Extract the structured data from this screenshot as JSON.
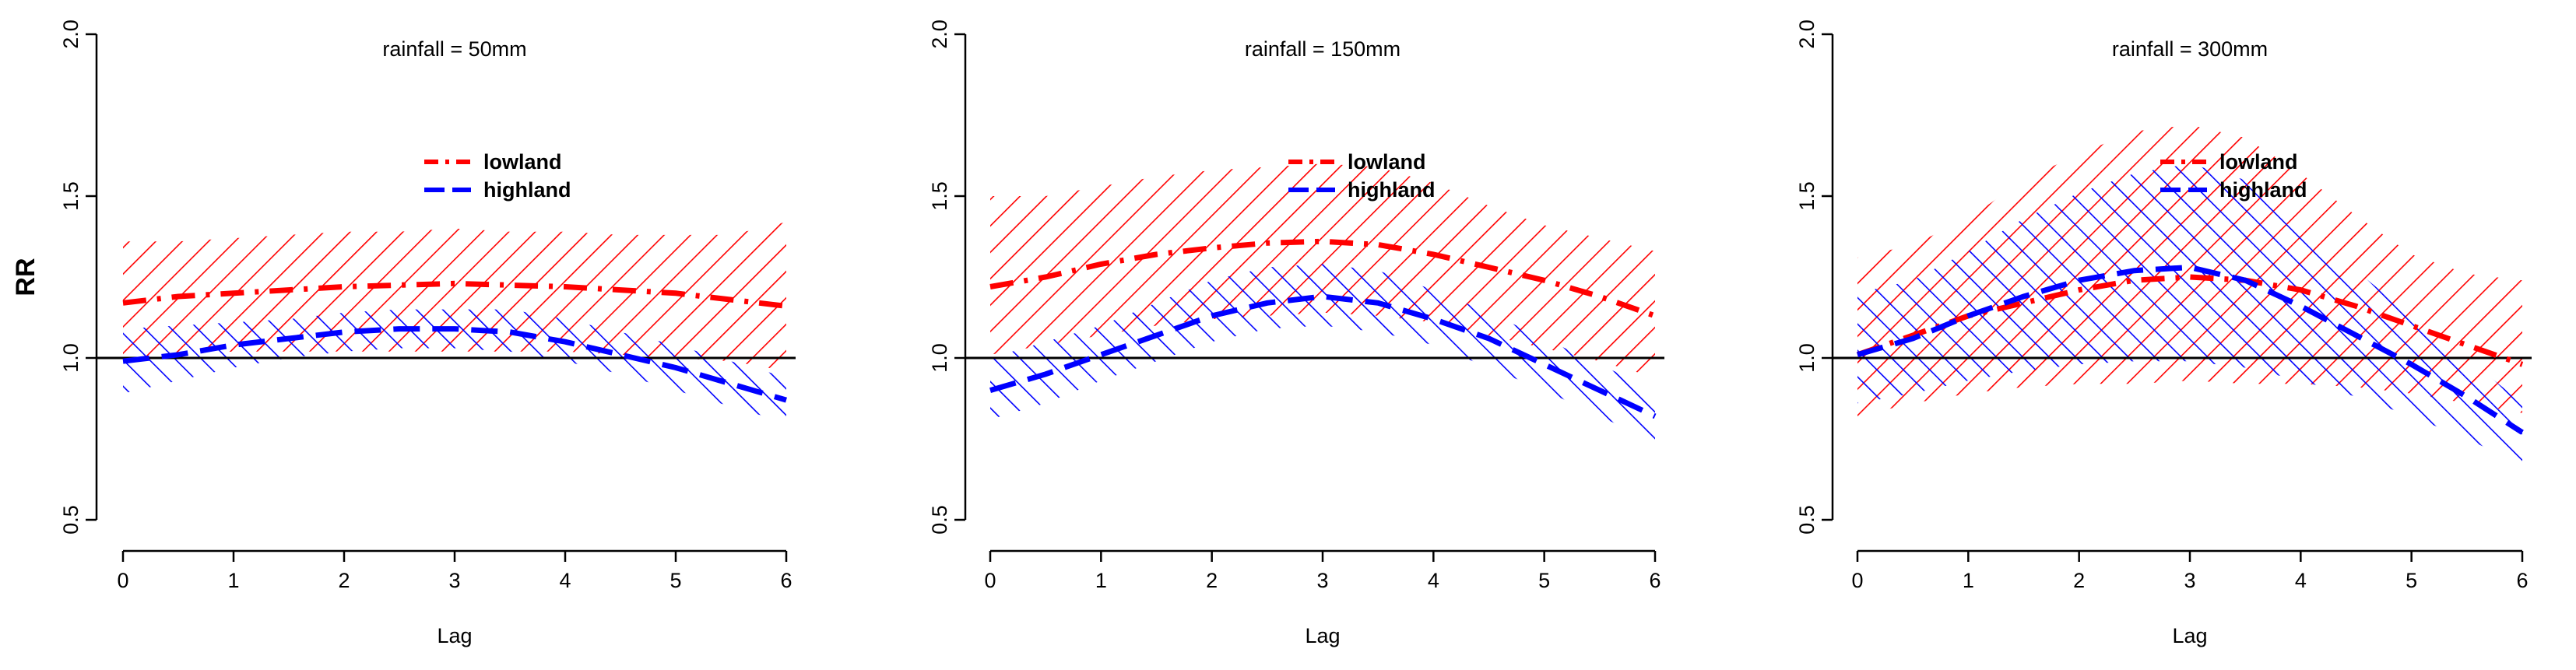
{
  "chart_data": [
    {
      "type": "line",
      "title": "rainfall = 50mm",
      "xlabel": "Lag",
      "ylabel": "RR",
      "xlim": [
        0,
        6
      ],
      "ylim": [
        0.5,
        2.0
      ],
      "xticks": [
        "0",
        "1",
        "2",
        "3",
        "4",
        "5",
        "6"
      ],
      "yticks": [
        "0.5",
        "1.0",
        "1.5",
        "2.0"
      ],
      "reference_line": 1.0,
      "legend": [
        "lowland",
        "highland"
      ],
      "series": [
        {
          "name": "lowland",
          "color": "#ff0000",
          "style": "dash-dot",
          "x": [
            0,
            0.5,
            1,
            1.5,
            2,
            2.5,
            3,
            3.5,
            4,
            4.5,
            5,
            5.5,
            6
          ],
          "values": [
            1.17,
            1.19,
            1.2,
            1.21,
            1.22,
            1.225,
            1.23,
            1.225,
            1.22,
            1.21,
            1.2,
            1.18,
            1.16
          ],
          "lower": [
            1.0,
            1.01,
            1.02,
            1.02,
            1.02,
            1.02,
            1.02,
            1.02,
            1.02,
            1.01,
            1.0,
            0.99,
            0.96
          ],
          "upper": [
            1.36,
            1.36,
            1.37,
            1.38,
            1.39,
            1.39,
            1.4,
            1.39,
            1.39,
            1.38,
            1.38,
            1.38,
            1.42
          ]
        },
        {
          "name": "highland",
          "color": "#0000ff",
          "style": "dash",
          "x": [
            0,
            0.5,
            1,
            1.5,
            2,
            2.5,
            3,
            3.5,
            4,
            4.5,
            5,
            5.5,
            6
          ],
          "values": [
            0.99,
            1.01,
            1.04,
            1.06,
            1.08,
            1.09,
            1.09,
            1.08,
            1.05,
            1.01,
            0.97,
            0.92,
            0.87
          ],
          "lower": [
            0.89,
            0.93,
            0.97,
            1.0,
            1.02,
            1.03,
            1.03,
            1.02,
            0.99,
            0.95,
            0.9,
            0.85,
            0.8
          ],
          "upper": [
            1.09,
            1.1,
            1.11,
            1.12,
            1.14,
            1.15,
            1.15,
            1.15,
            1.12,
            1.08,
            1.04,
            0.99,
            0.94
          ]
        }
      ]
    },
    {
      "type": "line",
      "title": "rainfall = 150mm",
      "xlabel": "Lag",
      "ylabel": "",
      "xlim": [
        0,
        6
      ],
      "ylim": [
        0.5,
        2.0
      ],
      "xticks": [
        "0",
        "1",
        "2",
        "3",
        "4",
        "5",
        "6"
      ],
      "yticks": [
        "0.5",
        "1.0",
        "1.5",
        "2.0"
      ],
      "reference_line": 1.0,
      "legend": [
        "lowland",
        "highland"
      ],
      "series": [
        {
          "name": "lowland",
          "color": "#ff0000",
          "style": "dash-dot",
          "x": [
            0,
            0.5,
            1,
            1.5,
            2,
            2.5,
            3,
            3.5,
            4,
            4.5,
            5,
            5.5,
            6
          ],
          "values": [
            1.22,
            1.25,
            1.29,
            1.32,
            1.34,
            1.355,
            1.36,
            1.35,
            1.32,
            1.28,
            1.24,
            1.19,
            1.13
          ],
          "lower": [
            1.01,
            1.04,
            1.07,
            1.1,
            1.12,
            1.13,
            1.14,
            1.13,
            1.11,
            1.07,
            1.03,
            0.99,
            0.94
          ],
          "upper": [
            1.5,
            1.5,
            1.53,
            1.56,
            1.58,
            1.59,
            1.6,
            1.59,
            1.54,
            1.47,
            1.41,
            1.37,
            1.33
          ]
        },
        {
          "name": "highland",
          "color": "#0000ff",
          "style": "dash",
          "x": [
            0,
            0.5,
            1,
            1.5,
            2,
            2.5,
            3,
            3.5,
            4,
            4.5,
            5,
            5.5,
            6
          ],
          "values": [
            0.9,
            0.95,
            1.01,
            1.07,
            1.13,
            1.17,
            1.19,
            1.17,
            1.12,
            1.06,
            0.98,
            0.9,
            0.82
          ],
          "lower": [
            0.81,
            0.86,
            0.93,
            0.99,
            1.05,
            1.09,
            1.1,
            1.08,
            1.04,
            0.97,
            0.9,
            0.82,
            0.74
          ],
          "upper": [
            1.0,
            1.05,
            1.1,
            1.17,
            1.24,
            1.28,
            1.29,
            1.27,
            1.21,
            1.14,
            1.06,
            0.98,
            0.9
          ]
        }
      ]
    },
    {
      "type": "line",
      "title": "rainfall = 300mm",
      "xlabel": "Lag",
      "ylabel": "",
      "xlim": [
        0,
        6
      ],
      "ylim": [
        0.5,
        2.0
      ],
      "xticks": [
        "0",
        "1",
        "2",
        "3",
        "4",
        "5",
        "6"
      ],
      "yticks": [
        "0.5",
        "1.0",
        "1.5",
        "2.0"
      ],
      "reference_line": 1.0,
      "legend": [
        "lowland",
        "highland"
      ],
      "series": [
        {
          "name": "lowland",
          "color": "#ff0000",
          "style": "dash-dot",
          "x": [
            0,
            0.5,
            1,
            1.5,
            2,
            2.5,
            3,
            3.5,
            4,
            4.5,
            5,
            5.5,
            6
          ],
          "values": [
            1.01,
            1.07,
            1.13,
            1.17,
            1.21,
            1.24,
            1.25,
            1.24,
            1.21,
            1.16,
            1.1,
            1.04,
            0.98
          ],
          "lower": [
            0.82,
            0.86,
            0.89,
            0.91,
            0.92,
            0.92,
            0.93,
            0.92,
            0.92,
            0.91,
            0.89,
            0.86,
            0.83
          ],
          "upper": [
            1.31,
            1.35,
            1.43,
            1.55,
            1.63,
            1.7,
            1.72,
            1.68,
            1.57,
            1.44,
            1.32,
            1.26,
            1.24
          ]
        },
        {
          "name": "highland",
          "color": "#0000ff",
          "style": "dash",
          "x": [
            0,
            0.5,
            1,
            1.5,
            2,
            2.5,
            3,
            3.5,
            4,
            4.5,
            5,
            5.5,
            6
          ],
          "values": [
            1.01,
            1.06,
            1.13,
            1.19,
            1.24,
            1.27,
            1.28,
            1.24,
            1.16,
            1.07,
            0.98,
            0.88,
            0.77
          ],
          "lower": [
            0.86,
            0.89,
            0.93,
            0.96,
            0.98,
            0.99,
            0.99,
            0.97,
            0.93,
            0.88,
            0.82,
            0.75,
            0.67
          ],
          "upper": [
            1.2,
            1.24,
            1.33,
            1.43,
            1.51,
            1.57,
            1.6,
            1.55,
            1.42,
            1.27,
            1.13,
            1.0,
            0.86
          ]
        }
      ]
    }
  ]
}
